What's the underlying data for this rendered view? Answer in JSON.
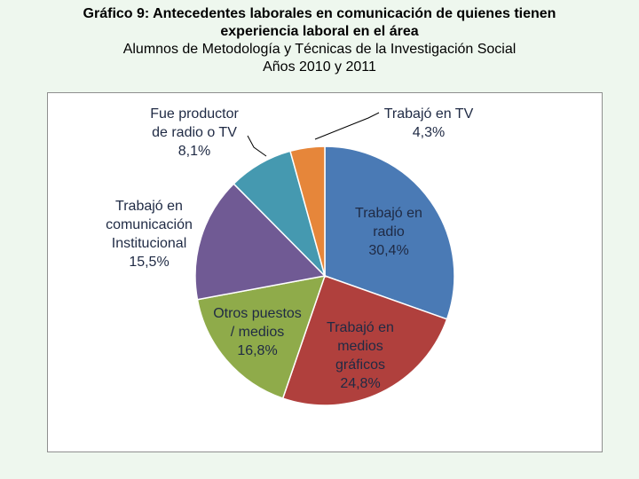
{
  "title": {
    "line1": "Gráfico 9: Antecedentes laborales en comunicación de quienes tienen",
    "line2": "experiencia laboral en el área",
    "line3": "Alumnos de Metodología y Técnicas de la Investigación Social",
    "line4": "Años 2010 y 2011"
  },
  "chart_data": {
    "type": "pie",
    "title": "Gráfico 9: Antecedentes laborales en comunicación de quienes tienen experiencia laboral en el área",
    "subtitle": "Alumnos de Metodología y Técnicas de la Investigación Social — Años 2010 y 2011",
    "unit": "%",
    "start": "12 o'clock",
    "direction": "clockwise",
    "slices": [
      {
        "label_lines": [
          "Trabajó en",
          "radio"
        ],
        "value": 30.4,
        "value_label": "30,4%",
        "color": "#4a7ab5"
      },
      {
        "label_lines": [
          "Trabajó en",
          "medios",
          "gráficos"
        ],
        "value": 24.8,
        "value_label": "24,8%",
        "color": "#b0403d"
      },
      {
        "label_lines": [
          "Otros puestos",
          "/ medios"
        ],
        "value": 16.8,
        "value_label": "16,8%",
        "color": "#8fab4a"
      },
      {
        "label_lines": [
          "Trabajó en",
          "comunicación",
          "Institucional"
        ],
        "value": 15.5,
        "value_label": "15,5%",
        "color": "#705a94"
      },
      {
        "label_lines": [
          "Fue productor",
          "de radio o TV"
        ],
        "value": 8.1,
        "value_label": "8,1%",
        "color": "#4599b0"
      },
      {
        "label_lines": [
          "Trabajó en TV"
        ],
        "value": 4.3,
        "value_label": "4,3%",
        "color": "#e6863a"
      }
    ]
  }
}
